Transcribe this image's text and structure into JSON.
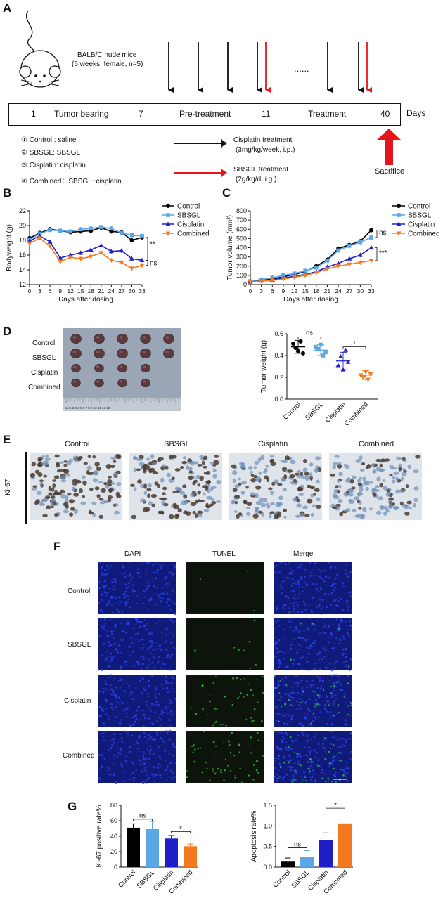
{
  "panel_labels": {
    "a": "A",
    "b": "B",
    "c": "C",
    "d": "D",
    "e": "E",
    "f": "F",
    "g": "G"
  },
  "colors": {
    "control": "#000000",
    "sbsgl": "#5aa6e6",
    "cisplatin": "#1f1fc8",
    "combined": "#f47a20",
    "red_arrow": "#e5151b",
    "dapi": "#1a2ad0",
    "tunel": "#103010"
  },
  "schedule": {
    "mouse_text_line1": "BALB/C nude mice",
    "mouse_text_line2": "(6 weeks, female, n=5)",
    "ellipsis": "......",
    "timeline": {
      "day1": "1",
      "tumor_bearing": "Tumor bearing",
      "day7": "7",
      "pre_treatment": "Pre-treatment",
      "day11": "11",
      "treatment": "Treatment",
      "day40": "40",
      "days": "Days"
    },
    "groups": [
      "① Control : saline",
      "② SBSGL: SBSGL",
      "③ Cisplatin: cisplatin",
      "④ Combined：SBSGL+cisplatin"
    ],
    "legend_black_line1": "Cisplatin treatment",
    "legend_black_line2": "(3mg/kg/week, i.p.)",
    "legend_red_line1": "SBSGL treatment",
    "legend_red_line2": "(2g/kg/d, i.g.)",
    "sacrifice": "Sacrifice"
  },
  "chart_data": [
    {
      "id": "B",
      "type": "line",
      "xlabel": "Days after dosing",
      "ylabel": "Bodyweight (g)",
      "x": [
        0,
        3,
        6,
        9,
        12,
        15,
        18,
        21,
        24,
        27,
        30,
        33
      ],
      "ylim": [
        12,
        22
      ],
      "yticks": [
        "12",
        "14",
        "16",
        "18",
        "20",
        "22"
      ],
      "series": [
        {
          "name": "Control",
          "values": [
            18.3,
            19.0,
            19.5,
            19.3,
            19.1,
            19.2,
            19.3,
            19.7,
            19.2,
            19.1,
            18.0,
            18.4
          ]
        },
        {
          "name": "SBSGL",
          "values": [
            18.1,
            18.9,
            19.4,
            19.3,
            19.2,
            19.5,
            19.6,
            19.8,
            19.6,
            19.0,
            18.7,
            18.6
          ]
        },
        {
          "name": "Cisplatin",
          "values": [
            17.9,
            18.6,
            17.8,
            15.6,
            16.0,
            16.3,
            16.7,
            17.3,
            16.5,
            16.6,
            15.5,
            15.3
          ]
        },
        {
          "name": "Combined",
          "values": [
            17.6,
            18.3,
            17.2,
            15.1,
            15.7,
            15.5,
            15.8,
            16.3,
            15.3,
            15.0,
            14.2,
            14.6
          ]
        }
      ],
      "annotations": [
        "**",
        "ns"
      ]
    },
    {
      "id": "C",
      "type": "line",
      "xlabel": "Days after dosing",
      "ylabel": "Tumor volume (mm³)",
      "x": [
        0,
        3,
        6,
        9,
        12,
        15,
        18,
        21,
        24,
        27,
        30,
        33
      ],
      "ylim": [
        0,
        800
      ],
      "yticks": [
        "0",
        "100",
        "200",
        "300",
        "400",
        "500",
        "600",
        "700",
        "800"
      ],
      "series": [
        {
          "name": "Control",
          "values": [
            35,
            45,
            60,
            85,
            110,
            140,
            200,
            270,
            390,
            430,
            470,
            590
          ]
        },
        {
          "name": "SBSGL",
          "values": [
            38,
            55,
            75,
            100,
            120,
            150,
            185,
            260,
            370,
            420,
            460,
            510
          ]
        },
        {
          "name": "Cisplatin",
          "values": [
            30,
            40,
            50,
            70,
            90,
            110,
            140,
            190,
            230,
            280,
            320,
            400
          ]
        },
        {
          "name": "Combined",
          "values": [
            28,
            38,
            45,
            60,
            80,
            100,
            130,
            170,
            200,
            220,
            240,
            260
          ]
        }
      ],
      "annotations": [
        "ns",
        "***"
      ]
    },
    {
      "id": "D",
      "type": "scatter",
      "ylabel": "Tumor weight (g)",
      "categories": [
        "Control",
        "SBSGL",
        "Cisplatin",
        "Combined"
      ],
      "ylim": [
        0,
        0.6
      ],
      "yticks": [
        "0.0",
        "0.2",
        "0.4",
        "0.6"
      ],
      "means": [
        0.48,
        0.45,
        0.35,
        0.22
      ],
      "sd": [
        0.06,
        0.05,
        0.08,
        0.04
      ],
      "points": [
        [
          0.51,
          0.47,
          0.44,
          0.53,
          0.42
        ],
        [
          0.48,
          0.46,
          0.5,
          0.4,
          0.43
        ],
        [
          0.31,
          0.39,
          0.27,
          0.45,
          0.34
        ],
        [
          0.22,
          0.2,
          0.25,
          0.18,
          0.23
        ]
      ],
      "annotations": [
        "ns",
        "*"
      ]
    },
    {
      "id": "G1",
      "type": "bar",
      "ylabel": "Ki-67 positive rate%",
      "categories": [
        "Control",
        "SBSGL",
        "Cisplatin",
        "Combined"
      ],
      "values": [
        51,
        50,
        37,
        27
      ],
      "errors": [
        5,
        9,
        4,
        3
      ],
      "ylim": [
        0,
        80
      ],
      "yticks": [
        "0",
        "20",
        "40",
        "60",
        "80"
      ],
      "annotations": [
        "ns",
        "*"
      ]
    },
    {
      "id": "G2",
      "type": "bar",
      "ylabel": "Apoptosis rate%",
      "categories": [
        "Control",
        "SBSGL",
        "Cisplatin",
        "Combined"
      ],
      "values": [
        0.15,
        0.24,
        0.66,
        1.06
      ],
      "errors": [
        0.07,
        0.16,
        0.17,
        0.33
      ],
      "ylim": [
        0,
        1.5
      ],
      "yticks": [
        "0.0",
        "0.5",
        "1.0",
        "1.5"
      ],
      "annotations": [
        "ns",
        "*"
      ]
    }
  ],
  "tumor_photo": {
    "rows": [
      "Control",
      "SBSGL",
      "Cisplatin",
      "Combined"
    ],
    "ruler": "1cm 2 3 4 5 6 7 8 9 10 11 12 13"
  },
  "ki67": {
    "row_label": "Ki-67",
    "columns": [
      "Control",
      "SBSGL",
      "Cisplatin",
      "Combined"
    ]
  },
  "tunel": {
    "columns": [
      "DAPI",
      "TUNEL",
      "Merge"
    ],
    "rows": [
      "Control",
      "SBSGL",
      "Cisplatin",
      "Combined"
    ]
  }
}
